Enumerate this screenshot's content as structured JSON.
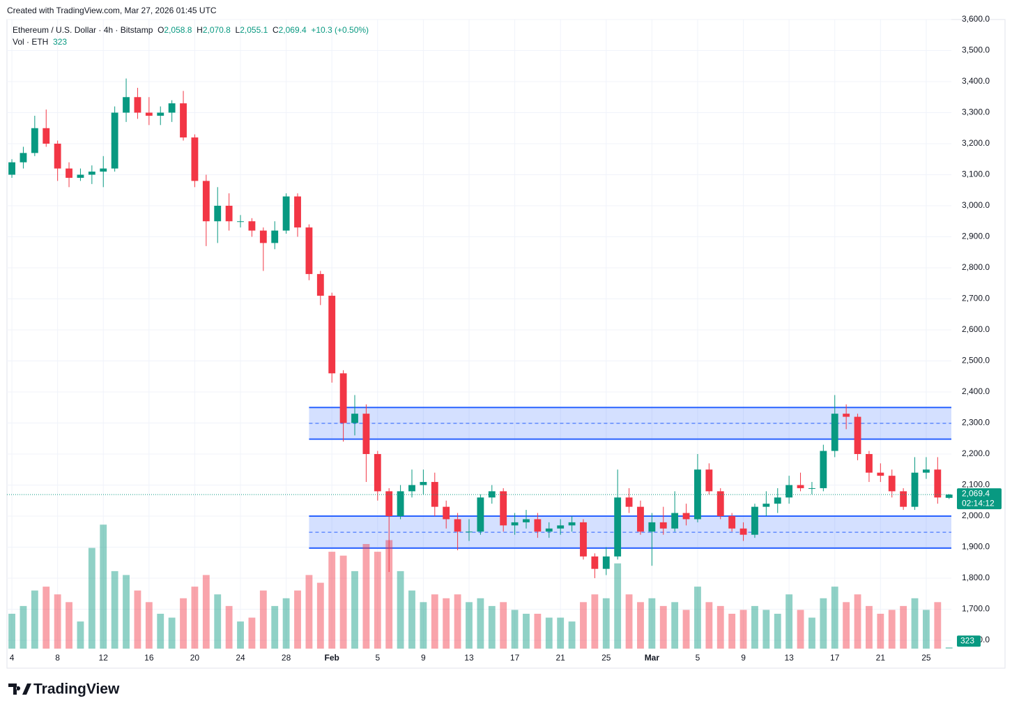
{
  "header": {
    "created": "Created with TradingView.com, Mar 27, 2026 01:45 UTC",
    "symbol": "Ethereum / U.S. Dollar · 4h · Bitstamp",
    "o_label": "O",
    "open": "2,058.8",
    "h_label": "H",
    "high": "2,070.8",
    "l_label": "L",
    "low": "2,055.1",
    "c_label": "C",
    "close": "2,069.4",
    "change": "+10.3 (+0.50%)",
    "vol_label": "Vol · ETH",
    "vol": "323"
  },
  "footer": {
    "brand": "TradingView"
  },
  "chart_data": {
    "type": "candlestick",
    "x": [
      4,
      5,
      6,
      7,
      8,
      9,
      10,
      11,
      12,
      13,
      14,
      15,
      16,
      17,
      18,
      19,
      20,
      21,
      22,
      23,
      24,
      25,
      26,
      27,
      28,
      29,
      30,
      31,
      32,
      33,
      34,
      35,
      36,
      37,
      38,
      39,
      40,
      41,
      42,
      43,
      44,
      45,
      46,
      47,
      48,
      49,
      50,
      51,
      52,
      53,
      54,
      55,
      56,
      57,
      58,
      59,
      60,
      61,
      62,
      63,
      64,
      65,
      66,
      67,
      68,
      69,
      70,
      71,
      72,
      73,
      74,
      75,
      76,
      77,
      78,
      79,
      80,
      81,
      82,
      83,
      84,
      85,
      86
    ],
    "open": [
      3100,
      3140,
      3170,
      3250,
      3200,
      3120,
      3090,
      3100,
      3110,
      3120,
      3300,
      3350,
      3300,
      3290,
      3300,
      3330,
      3220,
      3080,
      2950,
      3000,
      2950,
      2950,
      2920,
      2880,
      2920,
      3030,
      2930,
      2780,
      2710,
      2460,
      2300,
      2330,
      2200,
      2080,
      2000,
      2080,
      2100,
      2110,
      2030,
      1990,
      1950,
      1950,
      2060,
      2080,
      1970,
      1980,
      1990,
      1950,
      1960,
      1970,
      1980,
      1870,
      1830,
      1870,
      2060,
      2030,
      1950,
      1980,
      1960,
      2010,
      1990,
      2150,
      2080,
      2000,
      1960,
      1940,
      2030,
      2040,
      2060,
      2100,
      2090,
      2090,
      2210,
      2330,
      2320,
      2200,
      2140,
      2130,
      2080,
      2030,
      2140,
      2150,
      2058.8
    ],
    "high": [
      3150,
      3190,
      3290,
      3310,
      3210,
      3140,
      3120,
      3130,
      3160,
      3320,
      3410,
      3380,
      3350,
      3320,
      3340,
      3370,
      3230,
      3100,
      3060,
      3040,
      2970,
      2960,
      2930,
      2950,
      3040,
      3040,
      2940,
      2790,
      2720,
      2470,
      2390,
      2360,
      2210,
      2090,
      2100,
      2150,
      2150,
      2140,
      2050,
      2010,
      1990,
      2070,
      2100,
      2090,
      2010,
      2020,
      2010,
      1980,
      1990,
      2000,
      1990,
      1880,
      1900,
      2150,
      2090,
      2050,
      2010,
      2030,
      2080,
      2040,
      2200,
      2170,
      2090,
      2010,
      1980,
      2040,
      2080,
      2090,
      2130,
      2140,
      2110,
      2230,
      2390,
      2360,
      2330,
      2210,
      2170,
      2150,
      2090,
      2190,
      2190,
      2190,
      2070.8
    ],
    "low": [
      3090,
      3120,
      3160,
      3190,
      3080,
      3060,
      3080,
      3070,
      3060,
      3110,
      3270,
      3280,
      3260,
      3260,
      3270,
      3210,
      3060,
      2870,
      2880,
      2920,
      2930,
      2900,
      2790,
      2860,
      2910,
      2900,
      2760,
      2680,
      2430,
      2240,
      2260,
      2110,
      2050,
      1820,
      1990,
      2060,
      2070,
      2000,
      1960,
      1890,
      1920,
      1940,
      2040,
      1950,
      1940,
      1960,
      1930,
      1930,
      1940,
      1950,
      1860,
      1800,
      1810,
      1860,
      2010,
      1940,
      1840,
      1940,
      1950,
      1970,
      1980,
      2070,
      1990,
      1950,
      1920,
      1930,
      2000,
      2010,
      2040,
      2080,
      2070,
      2080,
      2190,
      2280,
      2180,
      2110,
      2110,
      2060,
      2020,
      2020,
      2120,
      2040,
      2055.1
    ],
    "close": [
      3140,
      3170,
      3250,
      3200,
      3120,
      3090,
      3100,
      3110,
      3120,
      3300,
      3350,
      3300,
      3290,
      3300,
      3330,
      3220,
      3080,
      2950,
      3000,
      2950,
      2950,
      2920,
      2880,
      2920,
      3030,
      2930,
      2780,
      2710,
      2460,
      2300,
      2330,
      2200,
      2080,
      2000,
      2080,
      2100,
      2110,
      2030,
      1990,
      1950,
      1950,
      2060,
      2080,
      1970,
      1980,
      1990,
      1950,
      1960,
      1970,
      1980,
      1870,
      1830,
      1870,
      2060,
      2030,
      1950,
      1980,
      1960,
      2010,
      1990,
      2150,
      2080,
      2000,
      1960,
      1940,
      2030,
      2040,
      2060,
      2100,
      2090,
      2090,
      2210,
      2330,
      2320,
      2200,
      2140,
      2130,
      2080,
      2030,
      2140,
      2150,
      2060,
      2069.4
    ],
    "volume": [
      9000,
      11000,
      15000,
      16000,
      14000,
      12000,
      7000,
      26000,
      32000,
      20000,
      19000,
      15000,
      12000,
      9000,
      8000,
      13000,
      16000,
      19000,
      14000,
      11000,
      7000,
      8000,
      15000,
      11000,
      13000,
      15000,
      19000,
      17000,
      25000,
      24000,
      20000,
      27000,
      25000,
      28000,
      20000,
      15000,
      12000,
      14000,
      13000,
      14000,
      12000,
      13000,
      11000,
      12000,
      10000,
      9000,
      9000,
      8000,
      8000,
      7000,
      12000,
      14000,
      13000,
      22000,
      14000,
      12000,
      13000,
      11000,
      12000,
      10000,
      16000,
      12000,
      11000,
      9000,
      10000,
      11000,
      10000,
      9000,
      14000,
      10000,
      8000,
      13000,
      16000,
      12000,
      14000,
      11000,
      9000,
      10000,
      11000,
      13000,
      10000,
      12000,
      323
    ],
    "vlim": [
      0,
      36000
    ],
    "xlim": [
      3.57,
      86.2
    ],
    "xticks": [
      4,
      8,
      12,
      16,
      20,
      24,
      28,
      {
        "value": 32,
        "label": "Feb"
      },
      {
        "value": 36,
        "label": "5"
      },
      {
        "value": 40,
        "label": "9"
      },
      {
        "value": 44,
        "label": "13"
      },
      {
        "value": 48,
        "label": "17"
      },
      {
        "value": 52,
        "label": "21"
      },
      {
        "value": 56,
        "label": "25"
      },
      {
        "value": 60,
        "label": "Mar"
      },
      {
        "value": 64,
        "label": "5"
      },
      {
        "value": 68,
        "label": "9"
      },
      {
        "value": 72,
        "label": "13"
      },
      {
        "value": 76,
        "label": "17"
      },
      {
        "value": 80,
        "label": "21"
      },
      {
        "value": 84,
        "label": "25"
      }
    ],
    "ylim": [
      1573,
      3618
    ],
    "yticks": [
      {
        "value": 1600,
        "label": "1,600.0"
      },
      {
        "value": 1700,
        "label": "1,700.0"
      },
      {
        "value": 1800,
        "label": "1,800.0"
      },
      {
        "value": 1900,
        "label": "1,900.0"
      },
      {
        "value": 2000,
        "label": "2,000.0"
      },
      {
        "value": 2100,
        "label": "2,100.0"
      },
      {
        "value": 2200,
        "label": "2,200.0"
      },
      {
        "value": 2300,
        "label": "2,300.0"
      },
      {
        "value": 2400,
        "label": "2,400.0"
      },
      {
        "value": 2500,
        "label": "2,500.0"
      },
      {
        "value": 2600,
        "label": "2,600.0"
      },
      {
        "value": 2700,
        "label": "2,700.0"
      },
      {
        "value": 2800,
        "label": "2,800.0"
      },
      {
        "value": 2900,
        "label": "2,900.0"
      },
      {
        "value": 3000,
        "label": "3,000.0"
      },
      {
        "value": 3100,
        "label": "3,100.0"
      },
      {
        "value": 3200,
        "label": "3,200.0"
      },
      {
        "value": 3300,
        "label": "3,300.0"
      },
      {
        "value": 3400,
        "label": "3,400.0"
      },
      {
        "value": 3500,
        "label": "3,500.0"
      },
      {
        "value": 3600,
        "label": "3,600.0"
      }
    ],
    "grid": true,
    "up_color": "#089981",
    "down_color": "#f23645",
    "zone_color": "#2962ff",
    "zones": [
      {
        "top": 2350,
        "bottom": 2248,
        "mid": 2299,
        "start": 30
      },
      {
        "top": 2000,
        "bottom": 1897,
        "mid": 1948,
        "start": 30
      }
    ],
    "last_price": {
      "value": 2069.4,
      "label": "2,069.4"
    },
    "countdown": "02:14:12",
    "last_volume": 323
  }
}
